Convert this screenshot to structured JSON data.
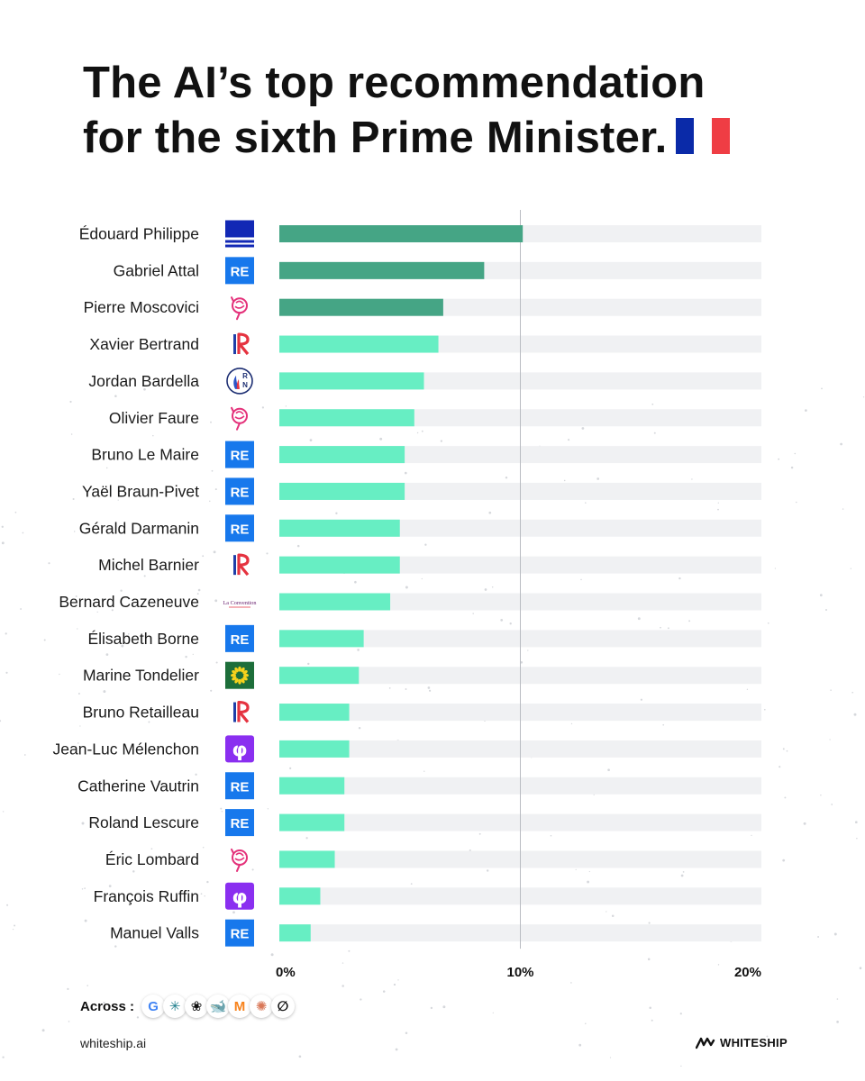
{
  "title": {
    "line1": "The AI’s top recommendation",
    "line2": "for the sixth Prime Minister."
  },
  "colors": {
    "top_bar": "#45a585",
    "bar": "#67eec3",
    "track": "#f0f1f3",
    "flag_blue": "#0a2aa8",
    "flag_red": "#ef3d44"
  },
  "parties": {
    "HOR": {
      "label": "",
      "icon": "horizons-logo"
    },
    "RE": {
      "label": "RE",
      "icon": "renaissance-logo"
    },
    "PS": {
      "label": "",
      "icon": "ps-rose-logo"
    },
    "LR": {
      "label": "LR",
      "icon": "les-republicains-logo"
    },
    "RN": {
      "label": "RN",
      "icon": "rassemblement-national-logo"
    },
    "LC": {
      "label": "La Convention",
      "icon": "la-convention-logo"
    },
    "EELV": {
      "label": "",
      "icon": "ecologistes-sunflower-logo"
    },
    "LFI": {
      "label": "φ",
      "icon": "la-france-insoumise-logo"
    }
  },
  "chart_data": {
    "type": "bar",
    "orientation": "horizontal",
    "title": "The AI’s top recommendation for the sixth Prime Minister.",
    "xlabel": "",
    "ylabel": "",
    "xlim": [
      0,
      20
    ],
    "xticks": [
      0,
      10,
      20
    ],
    "xtick_labels": [
      "0%",
      "10%",
      "20%"
    ],
    "reference_line": 10,
    "highlight_top": 3,
    "categories": [
      "Édouard Philippe",
      "Gabriel Attal",
      "Pierre Moscovici",
      "Xavier Bertrand",
      "Jordan Bardella",
      "Olivier Faure",
      "Bruno Le Maire",
      "Yaël Braun-Pivet",
      "Gérald Darmanin",
      "Michel Barnier",
      "Bernard Cazeneuve",
      "Élisabeth Borne",
      "Marine Tondelier",
      "Bruno Retailleau",
      "Jean-Luc Mélenchon",
      "Catherine Vautrin",
      "Roland Lescure",
      "Éric Lombard",
      "François Ruffin",
      "Manuel Valls"
    ],
    "parties": [
      "HOR",
      "RE",
      "PS",
      "LR",
      "RN",
      "PS",
      "RE",
      "RE",
      "RE",
      "LR",
      "LC",
      "RE",
      "EELV",
      "LR",
      "LFI",
      "RE",
      "RE",
      "PS",
      "LFI",
      "RE"
    ],
    "values": [
      10.1,
      8.5,
      6.8,
      6.6,
      6.0,
      5.6,
      5.2,
      5.2,
      5.0,
      5.0,
      4.6,
      3.5,
      3.3,
      2.9,
      2.9,
      2.7,
      2.7,
      2.3,
      1.7,
      1.3
    ]
  },
  "footer": {
    "across_label": "Across :",
    "models": [
      {
        "icon": "google-gemini-logo",
        "glyph": "G",
        "color": "#4285f4"
      },
      {
        "icon": "perplexity-logo",
        "glyph": "✳",
        "color": "#1f7f8c"
      },
      {
        "icon": "openai-logo",
        "glyph": "❀",
        "color": "#111111"
      },
      {
        "icon": "deepseek-logo",
        "glyph": "🐋",
        "color": "#4d6bfe"
      },
      {
        "icon": "mistral-logo",
        "glyph": "M",
        "color": "#f7821b"
      },
      {
        "icon": "claude-logo",
        "glyph": "✺",
        "color": "#d97757"
      },
      {
        "icon": "grok-logo",
        "glyph": "∅",
        "color": "#111111"
      }
    ],
    "url": "whiteship.ai",
    "brand": "WHITESHIP"
  }
}
